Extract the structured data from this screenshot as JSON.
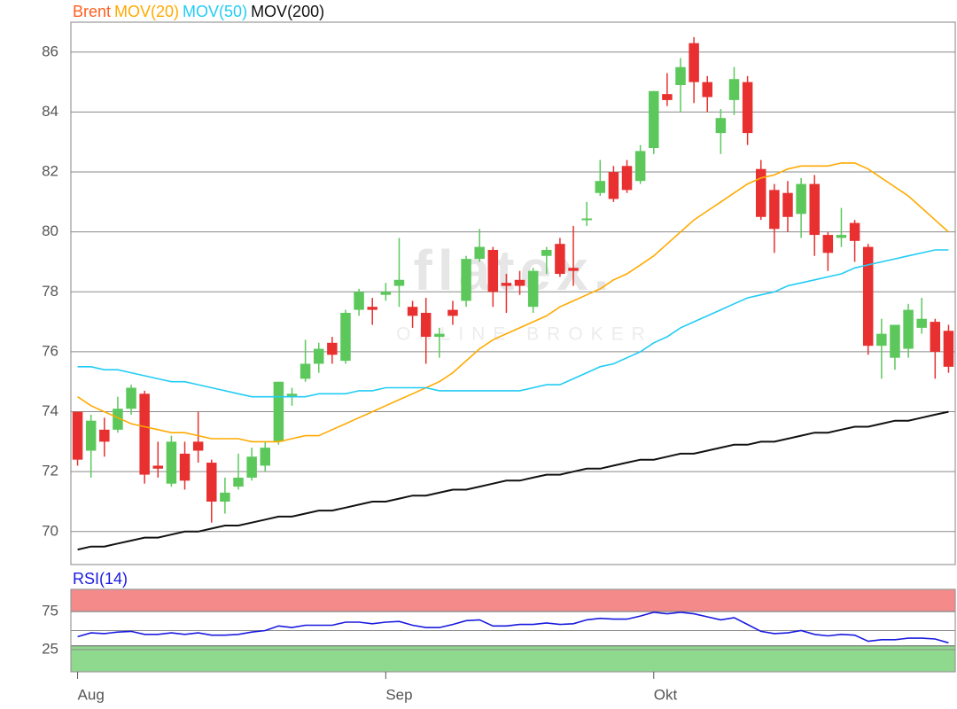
{
  "watermark": {
    "logo": "flatex.",
    "tagline": "ONLINE BROKER"
  },
  "chart_data": [
    {
      "type": "candlestick",
      "categories": [
        "Aug",
        null,
        null,
        null,
        null,
        null,
        null,
        null,
        null,
        null,
        null,
        null,
        null,
        null,
        null,
        null,
        null,
        null,
        null,
        null,
        null,
        null,
        null,
        "Sep",
        null,
        null,
        null,
        null,
        null,
        null,
        null,
        null,
        null,
        null,
        null,
        null,
        null,
        null,
        null,
        null,
        null,
        null,
        null,
        "Okt",
        null,
        null,
        null,
        null,
        null,
        null,
        null,
        null,
        null,
        null,
        null,
        null,
        null,
        null,
        null,
        null,
        null,
        null,
        null,
        null,
        null,
        null
      ],
      "ylim": [
        68.9,
        87.0
      ],
      "yticks": [
        70,
        72,
        74,
        76,
        78,
        80,
        82,
        84,
        86
      ],
      "grid": true,
      "up_color": "#5cc85c",
      "down_color": "#e83030",
      "series": [
        {
          "name": "Brent",
          "color": "#ff5f1f",
          "open": [
            74.0,
            72.7,
            73.4,
            73.4,
            74.1,
            74.6,
            72.2,
            71.6,
            72.6,
            73.0,
            72.3,
            71.0,
            71.5,
            71.8,
            72.2,
            73.0,
            74.5,
            75.1,
            75.6,
            76.3,
            75.7,
            77.4,
            77.5,
            77.9,
            78.2,
            77.5,
            77.3,
            76.5,
            77.4,
            77.7,
            79.1,
            79.4,
            78.3,
            78.4,
            77.5,
            79.2,
            79.6,
            78.8,
            80.4,
            81.3,
            82.0,
            82.2,
            81.7,
            82.8,
            84.6,
            84.9,
            86.3,
            85.0,
            83.3,
            84.4,
            85.0,
            82.1,
            81.4,
            81.3,
            80.6,
            81.6,
            79.9,
            79.8,
            80.3,
            79.5,
            76.2,
            75.8,
            76.1,
            76.8,
            77.0,
            76.7
          ],
          "high": [
            74.0,
            73.9,
            73.8,
            74.5,
            74.9,
            74.7,
            73.0,
            73.2,
            73.0,
            74.0,
            72.4,
            71.8,
            72.6,
            72.8,
            73.0,
            75.0,
            74.8,
            76.4,
            76.3,
            76.5,
            77.4,
            78.1,
            77.8,
            78.3,
            79.8,
            77.7,
            77.8,
            76.8,
            77.7,
            79.2,
            80.1,
            79.5,
            78.6,
            78.7,
            78.8,
            79.5,
            79.8,
            80.2,
            81.0,
            82.4,
            82.2,
            82.4,
            82.9,
            84.7,
            85.3,
            85.8,
            86.5,
            85.2,
            84.1,
            85.5,
            85.2,
            82.4,
            81.6,
            81.7,
            81.8,
            81.9,
            80.0,
            80.8,
            80.4,
            79.6,
            77.1,
            76.9,
            77.6,
            77.8,
            77.1,
            76.9
          ],
          "low": [
            72.2,
            71.8,
            72.5,
            73.3,
            73.9,
            71.6,
            71.8,
            71.5,
            71.4,
            72.3,
            70.3,
            70.6,
            71.4,
            71.7,
            72.0,
            72.9,
            74.2,
            75.0,
            75.3,
            75.6,
            75.6,
            77.2,
            76.9,
            77.7,
            77.5,
            76.8,
            75.6,
            75.8,
            76.9,
            77.5,
            79.0,
            77.5,
            77.3,
            77.9,
            77.3,
            78.6,
            78.5,
            78.2,
            80.2,
            81.2,
            81.0,
            81.3,
            81.6,
            82.6,
            84.2,
            84.0,
            84.3,
            84.0,
            82.6,
            83.9,
            82.9,
            80.4,
            79.3,
            80.0,
            79.8,
            79.2,
            78.7,
            79.5,
            79.0,
            75.9,
            75.1,
            75.4,
            75.8,
            76.6,
            75.1,
            75.3
          ],
          "close": [
            72.4,
            73.7,
            73.0,
            74.1,
            74.8,
            71.9,
            72.1,
            73.0,
            71.7,
            72.7,
            71.0,
            71.3,
            71.8,
            72.5,
            72.8,
            75.0,
            74.6,
            75.6,
            76.1,
            75.9,
            77.3,
            78.0,
            77.4,
            78.0,
            78.4,
            77.2,
            76.5,
            76.6,
            77.2,
            79.1,
            79.5,
            78.0,
            78.2,
            78.2,
            78.7,
            79.4,
            78.6,
            78.7,
            80.45,
            81.7,
            81.1,
            81.4,
            82.7,
            84.7,
            84.4,
            85.5,
            85.0,
            84.5,
            83.8,
            85.1,
            83.3,
            80.5,
            80.1,
            80.5,
            81.6,
            79.9,
            79.3,
            79.9,
            79.7,
            76.2,
            76.6,
            76.9,
            77.4,
            77.1,
            76.0,
            75.5
          ]
        },
        {
          "name": "MOV(20)",
          "color": "#ffaa00",
          "values": [
            74.5,
            74.2,
            74.0,
            73.8,
            73.6,
            73.5,
            73.4,
            73.3,
            73.3,
            73.2,
            73.1,
            73.1,
            73.1,
            73.0,
            73.0,
            73.0,
            73.1,
            73.2,
            73.2,
            73.4,
            73.6,
            73.8,
            74.0,
            74.2,
            74.4,
            74.6,
            74.8,
            75.0,
            75.3,
            75.7,
            76.1,
            76.4,
            76.6,
            76.8,
            77.0,
            77.2,
            77.5,
            77.7,
            77.9,
            78.1,
            78.4,
            78.6,
            78.9,
            79.2,
            79.6,
            80.0,
            80.4,
            80.7,
            81.0,
            81.3,
            81.6,
            81.8,
            81.9,
            82.1,
            82.2,
            82.2,
            82.2,
            82.3,
            82.3,
            82.1,
            81.8,
            81.5,
            81.2,
            80.8,
            80.4,
            80.0
          ]
        },
        {
          "name": "MOV(50)",
          "color": "#22ccf5",
          "values": [
            75.5,
            75.5,
            75.4,
            75.4,
            75.3,
            75.2,
            75.1,
            75.0,
            75.0,
            74.9,
            74.8,
            74.7,
            74.6,
            74.5,
            74.5,
            74.5,
            74.5,
            74.5,
            74.6,
            74.6,
            74.6,
            74.7,
            74.7,
            74.8,
            74.8,
            74.8,
            74.8,
            74.7,
            74.7,
            74.7,
            74.7,
            74.7,
            74.7,
            74.7,
            74.8,
            74.9,
            74.9,
            75.1,
            75.3,
            75.5,
            75.6,
            75.8,
            76.0,
            76.3,
            76.5,
            76.8,
            77.0,
            77.2,
            77.4,
            77.6,
            77.8,
            77.9,
            78.0,
            78.2,
            78.3,
            78.4,
            78.5,
            78.6,
            78.8,
            78.9,
            79.0,
            79.1,
            79.2,
            79.3,
            79.4,
            79.4
          ]
        },
        {
          "name": "MOV(200)",
          "color": "#111111",
          "values": [
            69.4,
            69.5,
            69.5,
            69.6,
            69.7,
            69.8,
            69.8,
            69.9,
            70.0,
            70.0,
            70.1,
            70.2,
            70.2,
            70.3,
            70.4,
            70.5,
            70.5,
            70.6,
            70.7,
            70.7,
            70.8,
            70.9,
            71.0,
            71.0,
            71.1,
            71.2,
            71.2,
            71.3,
            71.4,
            71.4,
            71.5,
            71.6,
            71.7,
            71.7,
            71.8,
            71.9,
            71.9,
            72.0,
            72.1,
            72.1,
            72.2,
            72.3,
            72.4,
            72.4,
            72.5,
            72.6,
            72.6,
            72.7,
            72.8,
            72.9,
            72.9,
            73.0,
            73.0,
            73.1,
            73.2,
            73.3,
            73.3,
            73.4,
            73.5,
            73.5,
            73.6,
            73.7,
            73.7,
            73.8,
            73.9,
            74.0
          ]
        }
      ]
    },
    {
      "type": "line",
      "ylim": [
        -4,
        104
      ],
      "yticks": [
        25,
        75
      ],
      "midline": 50,
      "bands": [
        {
          "from": 75,
          "to": 104,
          "color": "#f58a8a"
        },
        {
          "from": -4,
          "to": 30,
          "color": "#8fd98f"
        }
      ],
      "series": [
        {
          "name": "RSI(14)",
          "color": "#1a1adf",
          "values": [
            42,
            47,
            46,
            48,
            49,
            45,
            45,
            47,
            45,
            47,
            44,
            44,
            45,
            48,
            50,
            56,
            54,
            57,
            57,
            57,
            61,
            61,
            59,
            61,
            62,
            57,
            54,
            54,
            58,
            63,
            64,
            56,
            56,
            58,
            58,
            60,
            58,
            59,
            64,
            66,
            65,
            65,
            69,
            74,
            72,
            74,
            72,
            68,
            64,
            67,
            58,
            49,
            46,
            47,
            50,
            45,
            43,
            45,
            44,
            36,
            38,
            38,
            40,
            40,
            39,
            34
          ]
        }
      ]
    }
  ]
}
